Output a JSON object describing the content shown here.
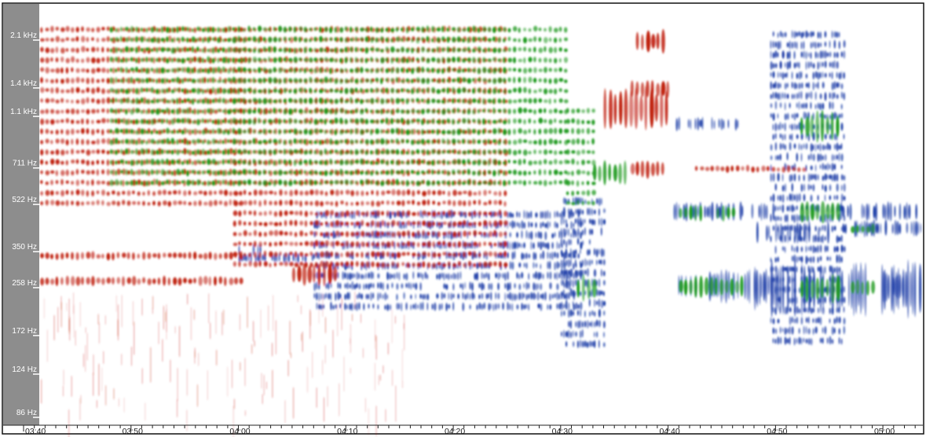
{
  "chart_data": {
    "type": "heatmap",
    "title": "",
    "xlabel": "",
    "ylabel": "",
    "x_unit": "time (mm:ss)",
    "y_unit": "frequency",
    "y_scale": "log",
    "y_ticks": [
      {
        "label": "2.1 kHz",
        "value": 2100
      },
      {
        "label": "1.4 kHz",
        "value": 1400
      },
      {
        "label": "1.1 kHz",
        "value": 1100
      },
      {
        "label": "711 Hz",
        "value": 711
      },
      {
        "label": "522 Hz",
        "value": 522
      },
      {
        "label": "350 Hz",
        "value": 350
      },
      {
        "label": "258 Hz",
        "value": 258
      },
      {
        "label": "172 Hz",
        "value": 172
      },
      {
        "label": "124 Hz",
        "value": 124
      },
      {
        "label": "86 Hz",
        "value": 86
      }
    ],
    "x_ticks": [
      {
        "label": "03:40",
        "value": 220
      },
      {
        "label": "03:50",
        "value": 230
      },
      {
        "label": "04:00",
        "value": 240
      },
      {
        "label": "04:10",
        "value": 250
      },
      {
        "label": "04:20",
        "value": 260
      },
      {
        "label": "04:30",
        "value": 270
      },
      {
        "label": "04:40",
        "value": 280
      },
      {
        "label": "04:50",
        "value": 290
      },
      {
        "label": "05:00",
        "value": 300
      }
    ],
    "x_range_seconds": [
      220,
      303.5
    ],
    "minor_tick_interval_seconds": 1,
    "grid": false,
    "legend": "none",
    "colors": {
      "track_red": "#c0200c",
      "track_green": "#1f9a1f",
      "track_blue": "#1f3fa8",
      "axis_strip": "#8d8d8d",
      "background": "#ffffff"
    },
    "series": [
      {
        "color": "red",
        "bands": [
          {
            "t_start": 220,
            "t_end": 240.2,
            "f_low": 500,
            "f_high": 2400
          },
          {
            "t_start": 220,
            "t_end": 240.2,
            "f_low": 330,
            "f_high": 350
          },
          {
            "t_start": 220,
            "t_end": 240.2,
            "f_low": 265,
            "f_high": 285
          },
          {
            "t_start": 239.5,
            "t_end": 265,
            "f_low": 300,
            "f_high": 2400
          },
          {
            "t_start": 245,
            "t_end": 249,
            "f_low": 265,
            "f_high": 320
          },
          {
            "t_start": 274,
            "t_end": 280,
            "f_low": 1000,
            "f_high": 1400
          },
          {
            "t_start": 276.5,
            "t_end": 280,
            "f_low": 1300,
            "f_high": 1500
          },
          {
            "t_start": 276.5,
            "t_end": 279.5,
            "f_low": 660,
            "f_high": 760
          },
          {
            "t_start": 277,
            "t_end": 279.5,
            "f_low": 1900,
            "f_high": 2300
          },
          {
            "t_start": 282.5,
            "t_end": 292.5,
            "f_low": 690,
            "f_high": 730
          }
        ]
      },
      {
        "color": "green",
        "bands": [
          {
            "t_start": 228,
            "t_end": 270.5,
            "f_low": 600,
            "f_high": 2400
          },
          {
            "t_start": 270.5,
            "t_end": 273,
            "f_low": 500,
            "f_high": 1200
          },
          {
            "t_start": 273,
            "t_end": 276,
            "f_low": 620,
            "f_high": 760
          },
          {
            "t_start": 271.5,
            "t_end": 273,
            "f_low": 230,
            "f_high": 290
          },
          {
            "t_start": 281,
            "t_end": 283,
            "f_low": 460,
            "f_high": 520
          },
          {
            "t_start": 284.5,
            "t_end": 286,
            "f_low": 460,
            "f_high": 520
          },
          {
            "t_start": 281,
            "t_end": 287,
            "f_low": 240,
            "f_high": 285
          },
          {
            "t_start": 292.3,
            "t_end": 295.7,
            "f_low": 450,
            "f_high": 540
          },
          {
            "t_start": 292.3,
            "t_end": 295.7,
            "f_low": 230,
            "f_high": 290
          },
          {
            "t_start": 292.3,
            "t_end": 295.7,
            "f_low": 900,
            "f_high": 1150
          },
          {
            "t_start": 297,
            "t_end": 299,
            "f_low": 410,
            "f_high": 445
          },
          {
            "t_start": 297,
            "t_end": 299,
            "f_low": 245,
            "f_high": 275
          }
        ]
      },
      {
        "color": "blue",
        "bands": [
          {
            "t_start": 240,
            "t_end": 247,
            "f_low": 325,
            "f_high": 345
          },
          {
            "t_start": 240,
            "t_end": 242,
            "f_low": 345,
            "f_high": 370
          },
          {
            "t_start": 247,
            "t_end": 272,
            "f_low": 200,
            "f_high": 500
          },
          {
            "t_start": 270,
            "t_end": 274,
            "f_low": 150,
            "f_high": 560
          },
          {
            "t_start": 280.5,
            "t_end": 290,
            "f_low": 470,
            "f_high": 520
          },
          {
            "t_start": 280.5,
            "t_end": 290,
            "f_low": 240,
            "f_high": 290
          },
          {
            "t_start": 280.5,
            "t_end": 286.5,
            "f_low": 1000,
            "f_high": 1080
          },
          {
            "t_start": 288,
            "t_end": 295,
            "f_low": 390,
            "f_high": 440
          },
          {
            "t_start": 288,
            "t_end": 303.5,
            "f_low": 220,
            "f_high": 300
          },
          {
            "t_start": 289.5,
            "t_end": 296.3,
            "f_low": 150,
            "f_high": 2300
          },
          {
            "t_start": 296,
            "t_end": 303.5,
            "f_low": 410,
            "f_high": 450
          },
          {
            "t_start": 296,
            "t_end": 303.5,
            "f_low": 470,
            "f_high": 520
          },
          {
            "t_start": 300,
            "t_end": 303.5,
            "f_low": 240,
            "f_high": 285
          }
        ]
      }
    ]
  }
}
